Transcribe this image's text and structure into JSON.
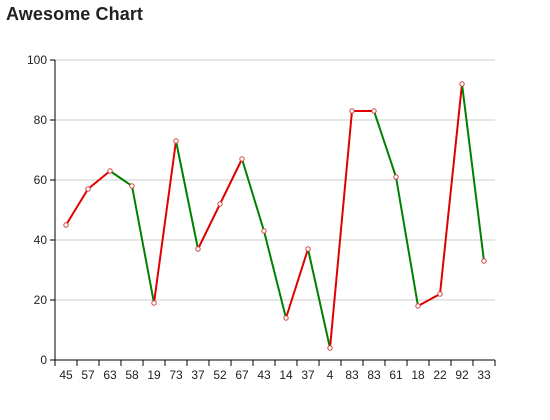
{
  "chart_data": {
    "type": "line",
    "title": "Awesome Chart",
    "xlabel": "",
    "ylabel": "",
    "categories": [
      "45",
      "57",
      "63",
      "58",
      "19",
      "73",
      "37",
      "52",
      "67",
      "43",
      "14",
      "37",
      "4",
      "83",
      "83",
      "61",
      "18",
      "22",
      "92",
      "33"
    ],
    "values": [
      45,
      57,
      63,
      58,
      19,
      73,
      37,
      52,
      67,
      43,
      14,
      37,
      4,
      83,
      83,
      61,
      18,
      22,
      92,
      33
    ],
    "ylim": [
      0,
      100
    ],
    "yticks": [
      0,
      20,
      40,
      60,
      80,
      100
    ],
    "grid": true,
    "colors": {
      "increase": "#e00000",
      "decrease": "#008000",
      "marker_stroke": "#d04040",
      "marker_fill": "#ffffff",
      "grid": "#cccccc",
      "axis": "#000000"
    }
  }
}
